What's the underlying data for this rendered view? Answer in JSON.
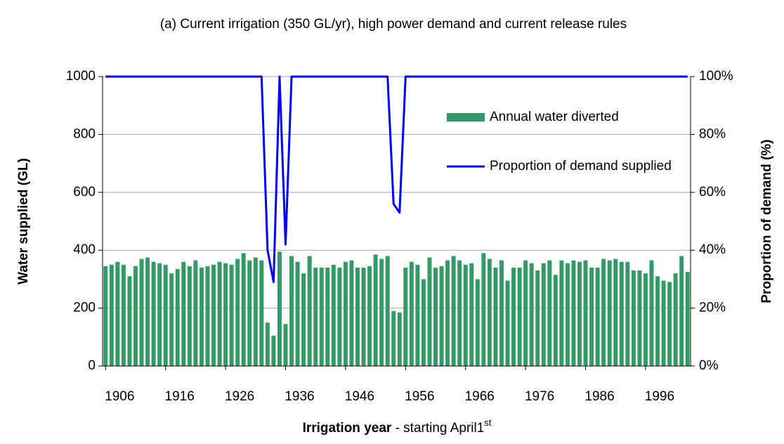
{
  "chart_data": {
    "type": "bar-line",
    "title": "(a) Current irrigation (350 GL/yr), high power demand and current release rules",
    "y_label": "Water supplied (GL)",
    "y2_label": "Proportion of demand (%)",
    "x_label": {
      "bold": "Irrigation year",
      "text": "  - starting April1",
      "sup": "st"
    },
    "x": [
      1906,
      1907,
      1908,
      1909,
      1910,
      1911,
      1912,
      1913,
      1914,
      1915,
      1916,
      1917,
      1918,
      1919,
      1920,
      1921,
      1922,
      1923,
      1924,
      1925,
      1926,
      1927,
      1928,
      1929,
      1930,
      1931,
      1932,
      1933,
      1934,
      1935,
      1936,
      1937,
      1938,
      1939,
      1940,
      1941,
      1942,
      1943,
      1944,
      1945,
      1946,
      1947,
      1948,
      1949,
      1950,
      1951,
      1952,
      1953,
      1954,
      1955,
      1956,
      1957,
      1958,
      1959,
      1960,
      1961,
      1962,
      1963,
      1964,
      1965,
      1966,
      1967,
      1968,
      1969,
      1970,
      1971,
      1972,
      1973,
      1974,
      1975,
      1976,
      1977,
      1978,
      1979,
      1980,
      1981,
      1982,
      1983,
      1984,
      1985,
      1986,
      1987,
      1988,
      1989,
      1990,
      1991,
      1992,
      1993,
      1994,
      1995,
      1996,
      1997,
      1998,
      1999,
      2000,
      2001,
      2002,
      2003
    ],
    "xlim": [
      1905.5,
      2003.5
    ],
    "xticks": [
      1906,
      1916,
      1926,
      1936,
      1946,
      1956,
      1966,
      1976,
      1986,
      1996
    ],
    "ylim": [
      0,
      1000
    ],
    "yticks": [
      0,
      200,
      400,
      600,
      800,
      1000
    ],
    "y2lim": [
      0,
      100
    ],
    "y2ticks": [
      {
        "value": 0,
        "label": "0%"
      },
      {
        "value": 20,
        "label": "20%"
      },
      {
        "value": 40,
        "label": "40%"
      },
      {
        "value": 60,
        "label": "60%"
      },
      {
        "value": 80,
        "label": "80%"
      },
      {
        "value": 100,
        "label": "100%"
      }
    ],
    "grid": true,
    "legend": "upper right",
    "series": [
      {
        "name": "Annual water diverted",
        "type": "bar",
        "color": "#339966",
        "values": [
          345,
          350,
          360,
          350,
          310,
          345,
          370,
          375,
          360,
          355,
          350,
          320,
          335,
          360,
          345,
          365,
          340,
          345,
          350,
          360,
          355,
          350,
          370,
          390,
          365,
          375,
          365,
          150,
          105,
          395,
          145,
          380,
          360,
          320,
          380,
          340,
          340,
          340,
          350,
          340,
          360,
          365,
          340,
          340,
          345,
          385,
          370,
          380,
          190,
          185,
          340,
          360,
          350,
          300,
          375,
          340,
          345,
          365,
          380,
          365,
          350,
          355,
          300,
          390,
          370,
          340,
          365,
          295,
          340,
          340,
          365,
          355,
          330,
          355,
          365,
          315,
          365,
          355,
          365,
          360,
          365,
          340,
          340,
          370,
          365,
          370,
          360,
          360,
          330,
          330,
          320,
          365,
          310,
          295,
          290,
          320,
          380,
          325
        ]
      },
      {
        "name": "Proportion of demand supplied",
        "type": "line",
        "axis": "y2",
        "color": "#0000ff",
        "values": [
          100,
          100,
          100,
          100,
          100,
          100,
          100,
          100,
          100,
          100,
          100,
          100,
          100,
          100,
          100,
          100,
          100,
          100,
          100,
          100,
          100,
          100,
          100,
          100,
          100,
          100,
          100,
          40,
          29,
          100,
          42,
          100,
          100,
          100,
          100,
          100,
          100,
          100,
          100,
          100,
          100,
          100,
          100,
          100,
          100,
          100,
          100,
          100,
          56,
          53,
          100,
          100,
          100,
          100,
          100,
          100,
          100,
          100,
          100,
          100,
          100,
          100,
          100,
          100,
          100,
          100,
          100,
          100,
          100,
          100,
          100,
          100,
          100,
          100,
          100,
          100,
          100,
          100,
          100,
          100,
          100,
          100,
          100,
          100,
          100,
          100,
          100,
          100,
          100,
          100,
          100,
          100,
          100,
          100,
          100,
          100,
          100,
          100
        ]
      }
    ]
  }
}
